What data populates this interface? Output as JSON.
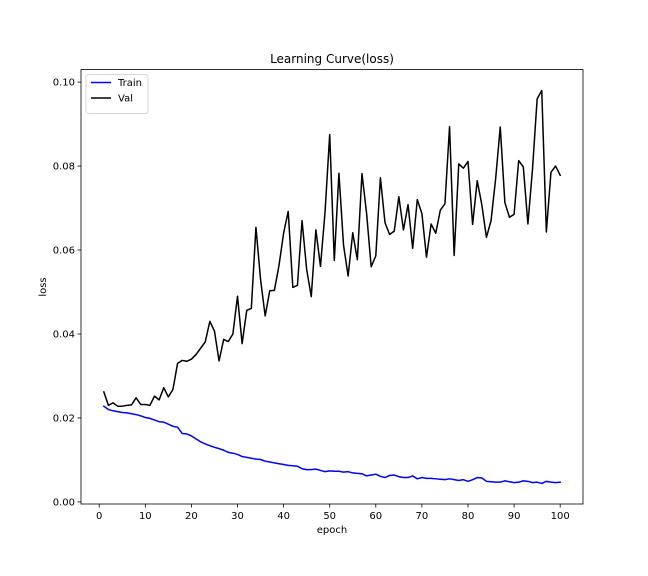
{
  "chart_data": {
    "type": "line",
    "title": "Learning Curve(loss)",
    "xlabel": "epoch",
    "ylabel": "loss",
    "xlim": [
      -3.95,
      104.95
    ],
    "ylim": [
      -0.0005,
      0.103
    ],
    "xticks": [
      0,
      10,
      20,
      30,
      40,
      50,
      60,
      70,
      80,
      90,
      100
    ],
    "xtick_labels": [
      "0",
      "10",
      "20",
      "30",
      "40",
      "50",
      "60",
      "70",
      "80",
      "90",
      "100"
    ],
    "yticks": [
      0.0,
      0.02,
      0.04,
      0.06,
      0.08,
      0.1
    ],
    "ytick_labels": [
      "0.00",
      "0.02",
      "0.04",
      "0.06",
      "0.08",
      "0.10"
    ],
    "grid": false,
    "legend_position": "upper-left",
    "x": [
      1,
      2,
      3,
      4,
      5,
      6,
      7,
      8,
      9,
      10,
      11,
      12,
      13,
      14,
      15,
      16,
      17,
      18,
      19,
      20,
      21,
      22,
      23,
      24,
      25,
      26,
      27,
      28,
      29,
      30,
      31,
      32,
      33,
      34,
      35,
      36,
      37,
      38,
      39,
      40,
      41,
      42,
      43,
      44,
      45,
      46,
      47,
      48,
      49,
      50,
      51,
      52,
      53,
      54,
      55,
      56,
      57,
      58,
      59,
      60,
      61,
      62,
      63,
      64,
      65,
      66,
      67,
      68,
      69,
      70,
      71,
      72,
      73,
      74,
      75,
      76,
      77,
      78,
      79,
      80,
      81,
      82,
      83,
      84,
      85,
      86,
      87,
      88,
      89,
      90,
      91,
      92,
      93,
      94,
      95,
      96,
      97,
      98,
      99,
      100
    ],
    "series": [
      {
        "name": "Train",
        "color": "#0000ff",
        "values": [
          0.0228,
          0.022,
          0.0217,
          0.0215,
          0.0213,
          0.0212,
          0.021,
          0.0208,
          0.0205,
          0.0201,
          0.0199,
          0.0195,
          0.0191,
          0.019,
          0.0185,
          0.018,
          0.0178,
          0.0163,
          0.0162,
          0.0157,
          0.015,
          0.0143,
          0.0138,
          0.0134,
          0.013,
          0.0127,
          0.0123,
          0.0118,
          0.0116,
          0.0113,
          0.0108,
          0.0106,
          0.0104,
          0.0102,
          0.0101,
          0.0097,
          0.0095,
          0.0093,
          0.0091,
          0.0089,
          0.0087,
          0.0086,
          0.0085,
          0.0079,
          0.0077,
          0.0077,
          0.0078,
          0.0075,
          0.0072,
          0.0074,
          0.0073,
          0.0073,
          0.0071,
          0.0072,
          0.0069,
          0.0068,
          0.0067,
          0.0062,
          0.0064,
          0.0066,
          0.0061,
          0.0058,
          0.0063,
          0.0064,
          0.006,
          0.0058,
          0.0058,
          0.0062,
          0.0055,
          0.0058,
          0.0056,
          0.0056,
          0.0055,
          0.0054,
          0.0053,
          0.0055,
          0.0053,
          0.0051,
          0.0053,
          0.0049,
          0.0053,
          0.0058,
          0.0057,
          0.0049,
          0.0048,
          0.0047,
          0.0047,
          0.005,
          0.0048,
          0.0046,
          0.0047,
          0.005,
          0.0049,
          0.0046,
          0.0047,
          0.0044,
          0.0049,
          0.0047,
          0.0046,
          0.0047
        ]
      },
      {
        "name": "Val",
        "color": "#000000",
        "values": [
          0.0262,
          0.023,
          0.0236,
          0.0228,
          0.0228,
          0.023,
          0.0231,
          0.0248,
          0.0232,
          0.0232,
          0.023,
          0.0252,
          0.0243,
          0.0272,
          0.025,
          0.0268,
          0.033,
          0.0337,
          0.0335,
          0.034,
          0.0351,
          0.0366,
          0.0381,
          0.043,
          0.0407,
          0.0336,
          0.0387,
          0.0382,
          0.04,
          0.049,
          0.0377,
          0.0456,
          0.0461,
          0.0654,
          0.053,
          0.0443,
          0.0503,
          0.0504,
          0.0563,
          0.064,
          0.0692,
          0.0511,
          0.0516,
          0.067,
          0.0554,
          0.0489,
          0.0648,
          0.0561,
          0.0692,
          0.0875,
          0.0575,
          0.0783,
          0.0612,
          0.0538,
          0.0641,
          0.0577,
          0.0782,
          0.0688,
          0.056,
          0.0586,
          0.0772,
          0.0665,
          0.0637,
          0.0645,
          0.0727,
          0.0648,
          0.0708,
          0.0604,
          0.072,
          0.0687,
          0.0583,
          0.0662,
          0.064,
          0.0695,
          0.071,
          0.0894,
          0.0587,
          0.0805,
          0.0795,
          0.0811,
          0.0661,
          0.0765,
          0.0708,
          0.063,
          0.067,
          0.077,
          0.0893,
          0.0713,
          0.0678,
          0.0685,
          0.0813,
          0.0798,
          0.0662,
          0.0793,
          0.096,
          0.098,
          0.0643,
          0.0785,
          0.08,
          0.0778
        ]
      }
    ]
  }
}
